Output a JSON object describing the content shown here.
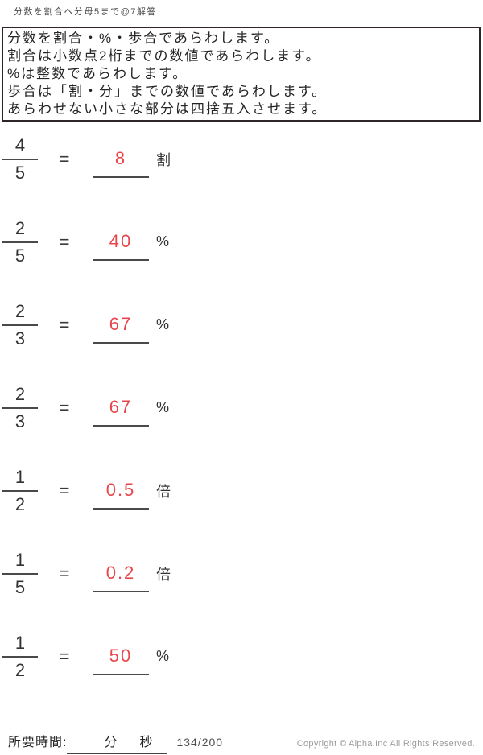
{
  "title": "分数を割合へ分母5まで@7解答",
  "instructions": [
    "分数を割合・%・歩合であらわします。",
    "割合は小数点2桁までの数値であらわします。",
    "%は整数であらわします。",
    "歩合は「割・分」までの数値であらわします。",
    "あらわせない小さな部分は四捨五入させます。"
  ],
  "equals_sign": "=",
  "problems": [
    {
      "numerator": "4",
      "denominator": "5",
      "answer": "8",
      "unit": "割"
    },
    {
      "numerator": "2",
      "denominator": "5",
      "answer": "40",
      "unit": "%"
    },
    {
      "numerator": "2",
      "denominator": "3",
      "answer": "67",
      "unit": "%"
    },
    {
      "numerator": "2",
      "denominator": "3",
      "answer": "67",
      "unit": "%"
    },
    {
      "numerator": "1",
      "denominator": "2",
      "answer": "0.5",
      "unit": "倍"
    },
    {
      "numerator": "1",
      "denominator": "5",
      "answer": "0.2",
      "unit": "倍"
    },
    {
      "numerator": "1",
      "denominator": "2",
      "answer": "50",
      "unit": "%"
    }
  ],
  "footer": {
    "time_label": "所要時間:",
    "minutes_unit": "分",
    "seconds_unit": "秒",
    "page": "134/200",
    "copyright": "Copyright ©  Alpha.Inc All Rights Reserved."
  },
  "colors": {
    "answer_red": "#e8464b",
    "line_gray": "#4a4a4a",
    "copyright_gray": "#9b9b9b"
  }
}
